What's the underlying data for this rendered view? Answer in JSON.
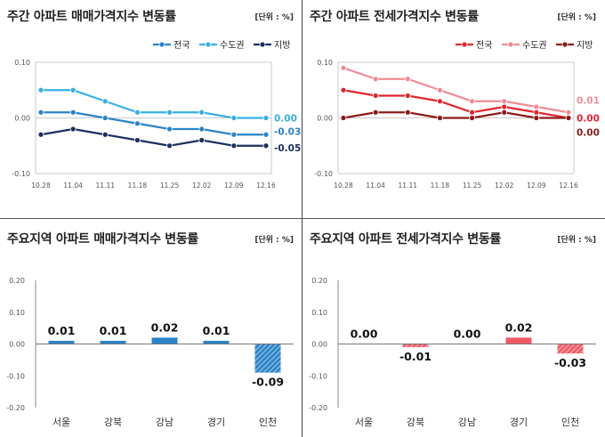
{
  "panels": [
    {
      "title": "주간 아파트 매매가격지수 변동률",
      "unit": "[단위 : %]"
    },
    {
      "title": "주간 아파트 전세가격지수 변동률",
      "unit": "[단위 : %]"
    },
    {
      "title": "주요지역 아파트 매매가격지수 변동률",
      "unit": "[단위 : %]"
    },
    {
      "title": "주요지역 아파트 전세가격지수 변동률",
      "unit": "[단위 : %]"
    }
  ],
  "chart_data": [
    {
      "type": "line",
      "title": "주간 아파트 매매가격지수 변동률",
      "x": [
        "10.28",
        "11.04",
        "11.11",
        "11.18",
        "11.25",
        "12.02",
        "12.09",
        "12.16"
      ],
      "ylim": [
        -0.1,
        0.1
      ],
      "yticks": [
        "0.10",
        "0.00",
        "-0.10"
      ],
      "legend": "top-right",
      "series": [
        {
          "name": "전국",
          "color": "#2a83c6",
          "values": [
            0.01,
            0.01,
            0.0,
            -0.01,
            -0.02,
            -0.02,
            -0.03,
            -0.03
          ],
          "end_label": "-0.03"
        },
        {
          "name": "수도권",
          "color": "#36b0e0",
          "values": [
            0.05,
            0.05,
            0.03,
            0.01,
            0.01,
            0.01,
            0.0,
            0.0
          ],
          "end_label": "0.00"
        },
        {
          "name": "지방",
          "color": "#1b2f5e",
          "values": [
            -0.03,
            -0.02,
            -0.03,
            -0.04,
            -0.05,
            -0.04,
            -0.05,
            -0.05
          ],
          "end_label": "-0.05"
        }
      ]
    },
    {
      "type": "line",
      "title": "주간 아파트 전세가격지수 변동률",
      "x": [
        "10.28",
        "11.04",
        "11.11",
        "11.18",
        "11.25",
        "12.02",
        "12.09",
        "12.16"
      ],
      "ylim": [
        -0.1,
        0.1
      ],
      "yticks": [
        "0.10",
        "0.00",
        "-0.10"
      ],
      "legend": "top-right",
      "series": [
        {
          "name": "전국",
          "color": "#e0262e",
          "values": [
            0.05,
            0.04,
            0.04,
            0.03,
            0.01,
            0.02,
            0.01,
            0.0
          ],
          "end_label": "0.00"
        },
        {
          "name": "수도권",
          "color": "#ef8c97",
          "values": [
            0.09,
            0.07,
            0.07,
            0.05,
            0.03,
            0.03,
            0.02,
            0.01
          ],
          "end_label": "0.01"
        },
        {
          "name": "지방",
          "color": "#8b1a1a",
          "values": [
            0.0,
            0.01,
            0.01,
            0.0,
            0.0,
            0.01,
            0.0,
            0.0
          ],
          "end_label": "0.00"
        }
      ]
    },
    {
      "type": "bar",
      "title": "주요지역 아파트 매매가격지수 변동률",
      "categories": [
        "서울",
        "강북",
        "강남",
        "경기",
        "인천"
      ],
      "values": [
        0.01,
        0.01,
        0.02,
        0.01,
        -0.09
      ],
      "value_labels": [
        "0.01",
        "0.01",
        "0.02",
        "0.01",
        "-0.09"
      ],
      "ylim": [
        -0.2,
        0.2
      ],
      "yticks": [
        "0.20",
        "0.10",
        "0.00",
        "-0.10",
        "-0.20"
      ],
      "color": "#2a83c6"
    },
    {
      "type": "bar",
      "title": "주요지역 아파트 전세가격지수 변동률",
      "categories": [
        "서울",
        "강북",
        "강남",
        "경기",
        "인천"
      ],
      "values": [
        0.0,
        -0.01,
        0.0,
        0.02,
        -0.03
      ],
      "value_labels": [
        "0.00",
        "-0.01",
        "0.00",
        "0.02",
        "-0.03"
      ],
      "ylim": [
        -0.2,
        0.2
      ],
      "yticks": [
        "0.20",
        "0.10",
        "0.00",
        "-0.10",
        "-0.20"
      ],
      "color": "#ef5a66"
    }
  ]
}
